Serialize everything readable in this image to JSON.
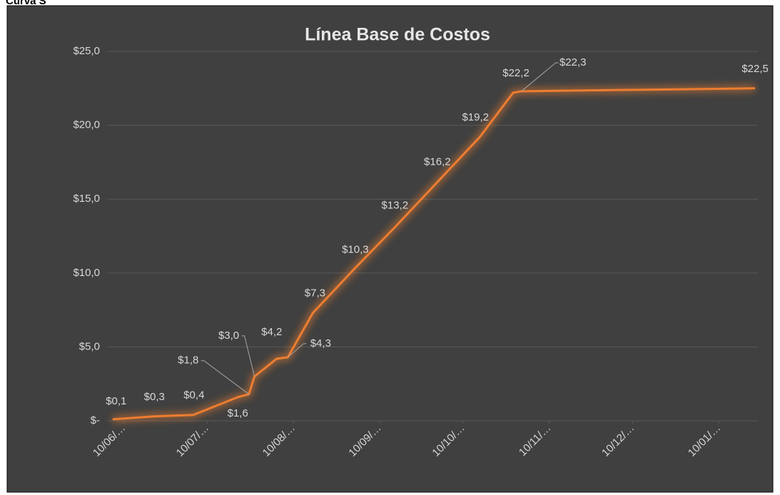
{
  "header": "Curva S",
  "chart_data": {
    "type": "line",
    "title": "Línea Base de Costos",
    "x": [
      -4,
      11,
      25,
      41,
      45,
      47,
      55,
      59,
      68,
      83,
      98,
      113,
      128,
      140,
      143,
      227
    ],
    "series": [
      {
        "name": "Línea Base de Costos",
        "color": "#ed7d31",
        "values": [
          0.1,
          0.3,
          0.4,
          1.6,
          1.8,
          3.0,
          4.2,
          4.3,
          7.3,
          10.3,
          13.2,
          16.2,
          19.2,
          22.2,
          22.3,
          22.5
        ],
        "value_labels": [
          "$0,1",
          "$0,3",
          "$0,4",
          "$1,6",
          "$1,8",
          "$3,0",
          "$4,2",
          "$4,3",
          "$7,3",
          "$10,3",
          "$13,2",
          "$16,2",
          "$19,2",
          "$22,2",
          "$22,3",
          "$22,5"
        ]
      }
    ],
    "xlim": [
      -6,
      228
    ],
    "xticks": [
      {
        "value": 0,
        "label": "10/06/…"
      },
      {
        "value": 30,
        "label": "10/07/…"
      },
      {
        "value": 61,
        "label": "10/08/…"
      },
      {
        "value": 92,
        "label": "10/09/…"
      },
      {
        "value": 122,
        "label": "10/10/…"
      },
      {
        "value": 153,
        "label": "10/11/…"
      },
      {
        "value": 183,
        "label": "10/12/…"
      },
      {
        "value": 214,
        "label": "10/01/…"
      }
    ],
    "ylim": [
      0,
      25
    ],
    "yticks": [
      {
        "value": 0,
        "label": "$-"
      },
      {
        "value": 5,
        "label": "$5,0"
      },
      {
        "value": 10,
        "label": "$10,0"
      },
      {
        "value": 15,
        "label": "$15,0"
      },
      {
        "value": 20,
        "label": "$20,0"
      },
      {
        "value": 25,
        "label": "$25,0"
      }
    ],
    "grid": true
  }
}
